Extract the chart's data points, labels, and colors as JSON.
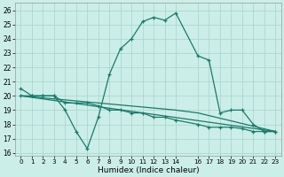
{
  "xlabel": "Humidex (Indice chaleur)",
  "xlim": [
    -0.5,
    23.5
  ],
  "ylim": [
    15.8,
    26.5
  ],
  "yticks": [
    16,
    17,
    18,
    19,
    20,
    21,
    22,
    23,
    24,
    25,
    26
  ],
  "xtick_positions": [
    0,
    1,
    2,
    3,
    4,
    5,
    6,
    7,
    8,
    9,
    10,
    11,
    12,
    13,
    14,
    16,
    17,
    18,
    19,
    20,
    21,
    22,
    23
  ],
  "xtick_labels": [
    "0",
    "1",
    "2",
    "3",
    "4",
    "5",
    "6",
    "7",
    "8",
    "9",
    "10",
    "11",
    "12",
    "13",
    "14",
    "16",
    "17",
    "18",
    "19",
    "20",
    "21",
    "22",
    "23"
  ],
  "bg_color": "#cceee8",
  "grid_color": "#aad8d0",
  "line_color": "#1a7a6a",
  "curve1_x": [
    0,
    1,
    2,
    3,
    4,
    5,
    6,
    7,
    8,
    9,
    10,
    11,
    12,
    13,
    14,
    16,
    17,
    18,
    19,
    20,
    21,
    22,
    23
  ],
  "curve1_y": [
    20.5,
    20.0,
    20.0,
    20.0,
    19.0,
    17.5,
    16.3,
    18.5,
    21.5,
    23.3,
    24.0,
    25.2,
    25.5,
    25.3,
    25.8,
    22.8,
    22.5,
    18.8,
    19.0,
    19.0,
    18.0,
    17.5,
    17.5
  ],
  "curve2_x": [
    0,
    1,
    2,
    3,
    4,
    5,
    6,
    7,
    8,
    9,
    10,
    11,
    12,
    13,
    14,
    16,
    17,
    18,
    19,
    20,
    21,
    22,
    23
  ],
  "curve2_y": [
    20.0,
    20.0,
    20.0,
    20.0,
    19.5,
    19.5,
    19.5,
    19.3,
    19.0,
    19.0,
    18.8,
    18.8,
    18.5,
    18.5,
    18.3,
    18.0,
    17.8,
    17.8,
    17.8,
    17.7,
    17.5,
    17.5,
    17.5
  ],
  "line3_x": [
    0,
    23
  ],
  "line3_y": [
    20.0,
    17.5
  ],
  "line4_x": [
    0,
    14,
    16,
    23
  ],
  "line4_y": [
    20.0,
    19.0,
    18.8,
    17.5
  ]
}
